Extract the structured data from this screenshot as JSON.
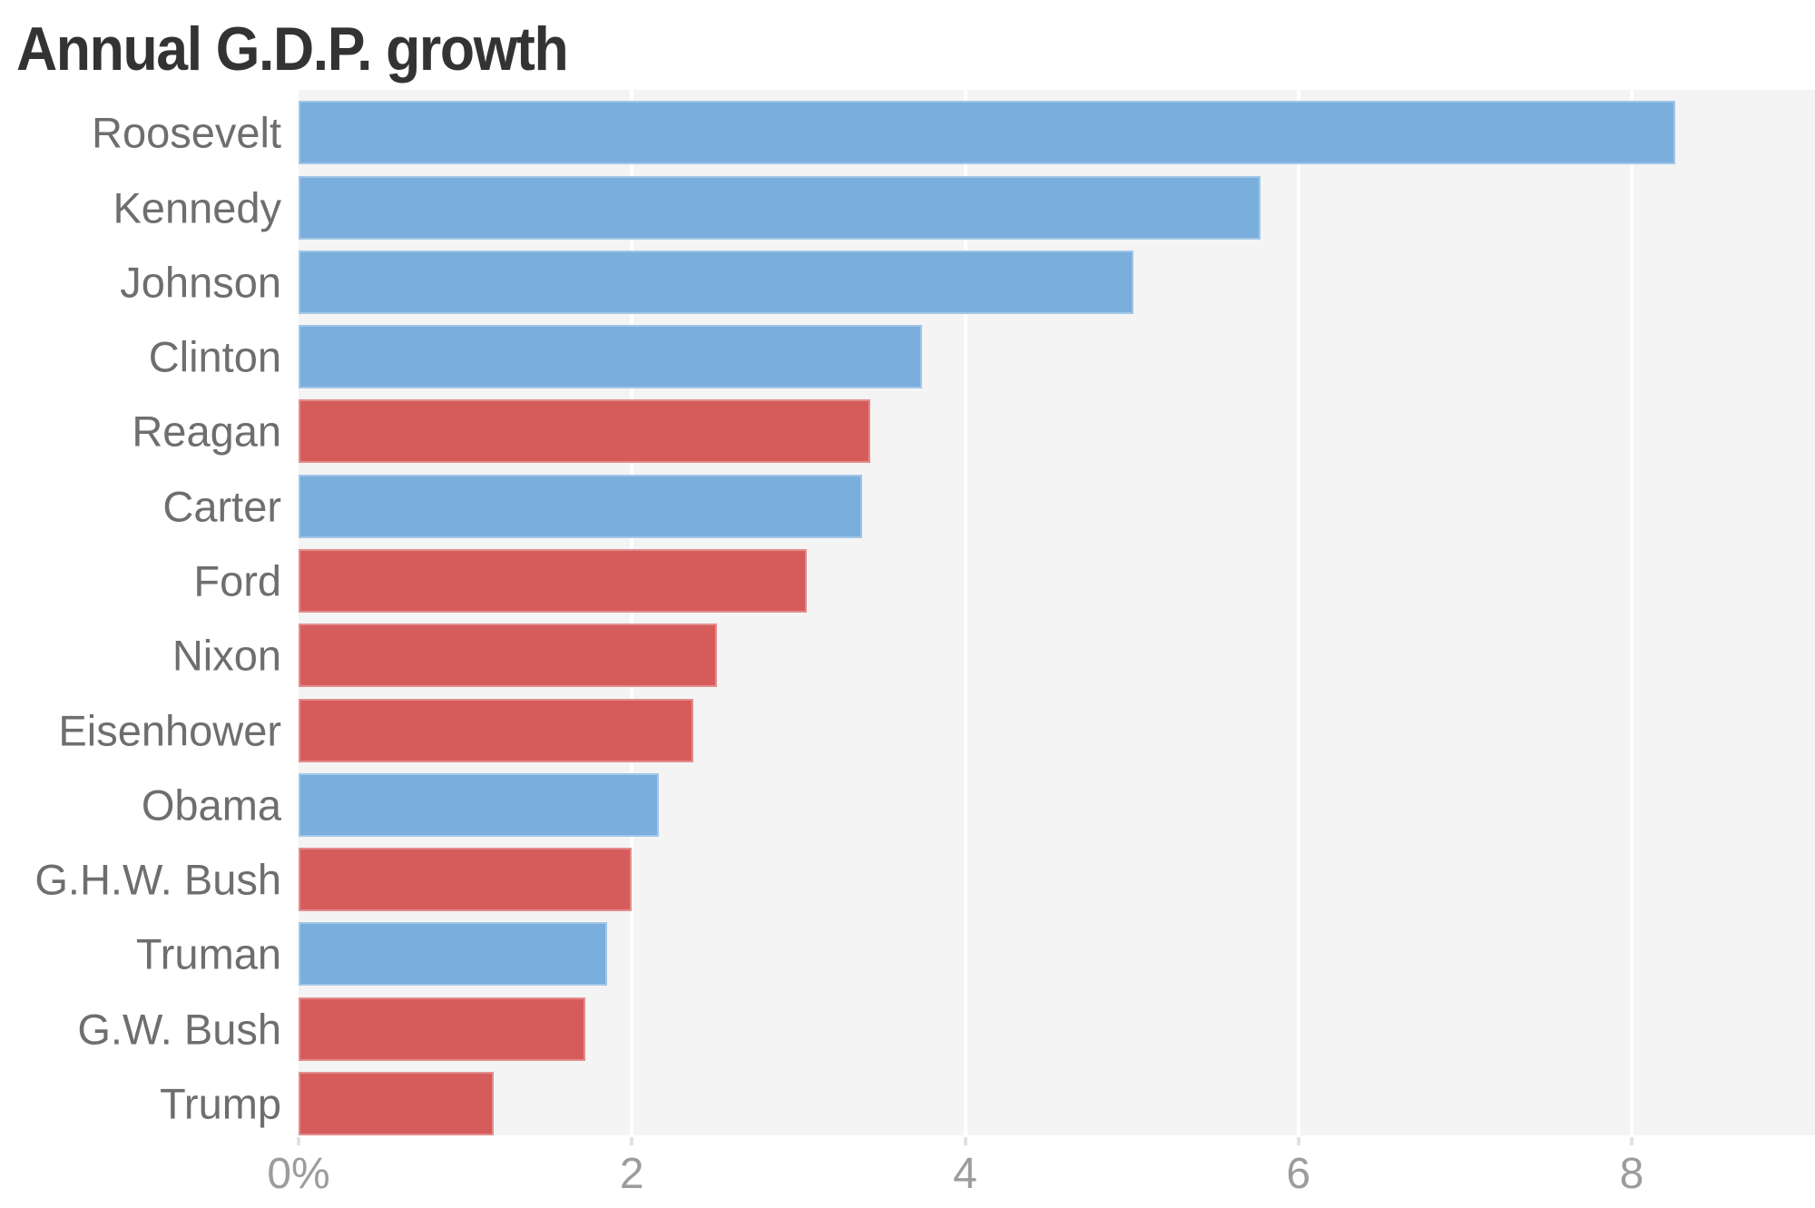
{
  "title": "Annual G.D.P. growth",
  "chart_data": {
    "type": "bar",
    "orientation": "horizontal",
    "title": "Annual G.D.P. growth",
    "categories": [
      "Roosevelt",
      "Kennedy",
      "Johnson",
      "Clinton",
      "Reagan",
      "Carter",
      "Ford",
      "Nixon",
      "Eisenhower",
      "Obama",
      "G.H.W. Bush",
      "Truman",
      "G.W. Bush",
      "Trump"
    ],
    "values": [
      8.26,
      5.77,
      5.01,
      3.74,
      3.43,
      3.38,
      3.05,
      2.51,
      2.37,
      2.16,
      2.0,
      1.85,
      1.72,
      1.17
    ],
    "unit": "percent",
    "parties": [
      "D",
      "D",
      "D",
      "D",
      "R",
      "D",
      "R",
      "R",
      "R",
      "D",
      "R",
      "D",
      "R",
      "R"
    ],
    "x_ticks": [
      "0%",
      "2",
      "4",
      "6",
      "8"
    ],
    "x_tick_values": [
      0,
      2,
      4,
      6,
      8
    ],
    "xlim": [
      0,
      9.1
    ],
    "ylabel": "",
    "xlabel": "",
    "legend": "none",
    "grid": "vertical-white-gridlines-on-gray-panel",
    "colors": {
      "democrat_bar": "#79aedd",
      "republican_bar": "#d65c5c",
      "panel_background": "#f4f4f4",
      "gridline": "#ffffff",
      "tick_mark": "#e2e2e2",
      "title_text": "#333333",
      "label_text": "#6e6e6e",
      "axis_text": "#9c9c9c"
    }
  }
}
